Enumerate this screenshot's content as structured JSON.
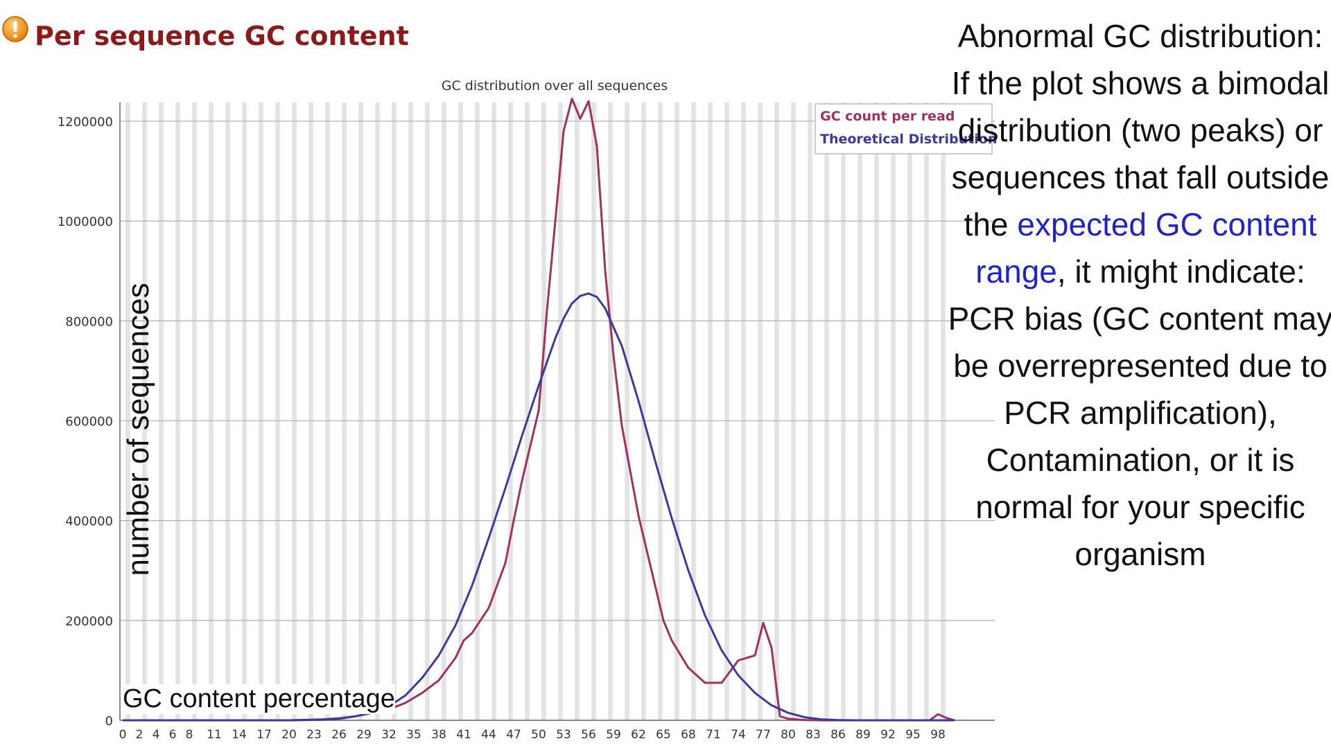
{
  "header": {
    "title": "Per sequence GC content",
    "status_icon": "warning-icon",
    "status_color": "#f39c12"
  },
  "annotation": {
    "part1": "Abnormal GC distribution: If the plot shows a bimodal distribution (two peaks) or sequences that fall outside the ",
    "highlight": "expected GC content range",
    "part2": ", it might indicate: PCR bias (GC content may be overrepresented due to PCR amplification), Contamination, or it is normal for your specific organism",
    "highlight_color": "#2222cc"
  },
  "axis_labels": {
    "y": "number of sequences",
    "x": "GC content percentage"
  },
  "chart_data": {
    "type": "line",
    "title": "GC distribution over all sequences",
    "ylim": [
      0,
      1250000
    ],
    "xlim": [
      0,
      100
    ],
    "y_ticks": [
      0,
      200000,
      400000,
      600000,
      800000,
      1000000,
      1200000
    ],
    "x_tick_labels": [
      "0",
      "2",
      "4",
      "6",
      "8",
      "11",
      "14",
      "17",
      "20",
      "23",
      "26",
      "29",
      "32",
      "35",
      "38",
      "41",
      "44",
      "47",
      "50",
      "53",
      "56",
      "59",
      "62",
      "65",
      "68",
      "71",
      "74",
      "77",
      "80",
      "83",
      "86",
      "89",
      "92",
      "95",
      "98"
    ],
    "grid": true,
    "legend_position": "top-right",
    "series": [
      {
        "name": "GC count per read",
        "color": "#a03060",
        "x": [
          0,
          10,
          20,
          24,
          26,
          28,
          30,
          32,
          34,
          36,
          38,
          40,
          41,
          42,
          44,
          46,
          47,
          48,
          50,
          51,
          52,
          53,
          54,
          55,
          56,
          57,
          58,
          59,
          60,
          62,
          64,
          65,
          66,
          68,
          70,
          72,
          74,
          75,
          76,
          77,
          78,
          79,
          80,
          82,
          84,
          86,
          88,
          90,
          92,
          94,
          96,
          97,
          98,
          99,
          100
        ],
        "values": [
          0,
          0,
          0,
          2000,
          4000,
          8000,
          15000,
          22000,
          35000,
          55000,
          80000,
          125000,
          160000,
          175000,
          225000,
          315000,
          400000,
          480000,
          620000,
          820000,
          1000000,
          1180000,
          1245000,
          1205000,
          1240000,
          1150000,
          900000,
          730000,
          590000,
          410000,
          270000,
          200000,
          160000,
          105000,
          75000,
          75000,
          120000,
          125000,
          130000,
          195000,
          145000,
          8000,
          3000,
          500,
          0,
          0,
          0,
          0,
          0,
          0,
          0,
          0,
          12000,
          5000,
          0
        ]
      },
      {
        "name": "Theoretical Distribution",
        "color": "#3a3a9c",
        "x": [
          0,
          10,
          20,
          24,
          26,
          28,
          30,
          32,
          34,
          36,
          38,
          40,
          42,
          44,
          46,
          48,
          50,
          52,
          53,
          54,
          55,
          56,
          57,
          58,
          60,
          62,
          64,
          66,
          68,
          70,
          72,
          74,
          76,
          78,
          80,
          82,
          84,
          86,
          88,
          90,
          95,
          100
        ],
        "values": [
          0,
          0,
          0,
          1000,
          3000,
          8000,
          15000,
          28000,
          50000,
          85000,
          130000,
          190000,
          270000,
          365000,
          465000,
          570000,
          670000,
          765000,
          805000,
          835000,
          850000,
          855000,
          848000,
          825000,
          750000,
          640000,
          520000,
          405000,
          300000,
          210000,
          140000,
          90000,
          55000,
          30000,
          15000,
          6000,
          2000,
          500,
          0,
          0,
          0,
          0
        ]
      }
    ]
  }
}
